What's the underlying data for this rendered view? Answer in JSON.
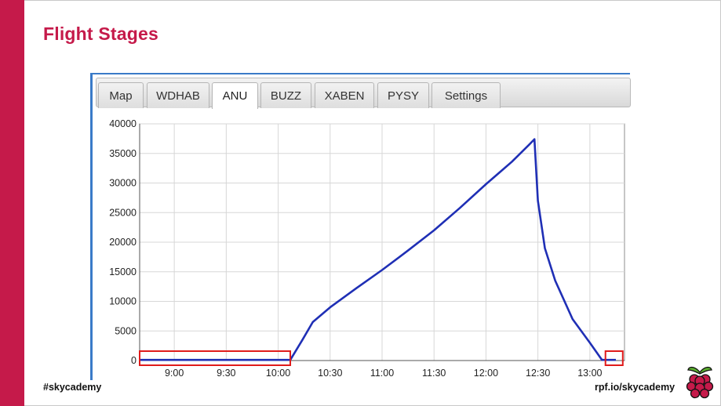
{
  "slide": {
    "title": "Flight Stages",
    "footer_left": "#skycademy",
    "footer_right": "rpf.io/skycademy",
    "accent_color": "#c51a4a",
    "logo_icon": "raspberry-logo-icon"
  },
  "tabs": [
    {
      "label": "Map",
      "active": false
    },
    {
      "label": "WDHAB",
      "active": false
    },
    {
      "label": "ANU",
      "active": true
    },
    {
      "label": "BUZZ",
      "active": false
    },
    {
      "label": "XABEN",
      "active": false
    },
    {
      "label": "PYSY",
      "active": false
    },
    {
      "label": "Settings",
      "active": false
    }
  ],
  "chart_data": {
    "type": "line",
    "title": "",
    "xlabel": "",
    "ylabel": "",
    "x_ticks": [
      "9:00",
      "9:30",
      "10:00",
      "10:30",
      "11:00",
      "11:30",
      "12:00",
      "12:30",
      "13:00"
    ],
    "y_ticks": [
      0,
      5000,
      10000,
      15000,
      20000,
      25000,
      30000,
      35000,
      40000
    ],
    "ylim": [
      0,
      40000
    ],
    "xlim": [
      "08:40",
      "13:20"
    ],
    "grid": true,
    "line_color": "#1f2fb5",
    "series": [
      {
        "points": [
          [
            "08:40",
            100
          ],
          [
            "09:00",
            100
          ],
          [
            "09:30",
            100
          ],
          [
            "10:00",
            100
          ],
          [
            "10:07",
            100
          ],
          [
            "10:14",
            3500
          ],
          [
            "10:20",
            6500
          ],
          [
            "10:30",
            9000
          ],
          [
            "10:45",
            12200
          ],
          [
            "11:00",
            15300
          ],
          [
            "11:15",
            18600
          ],
          [
            "11:30",
            22000
          ],
          [
            "11:45",
            25800
          ],
          [
            "12:00",
            29800
          ],
          [
            "12:15",
            33600
          ],
          [
            "12:25",
            36500
          ],
          [
            "12:28",
            37400
          ],
          [
            "12:30",
            27000
          ],
          [
            "12:34",
            19000
          ],
          [
            "12:40",
            13500
          ],
          [
            "12:50",
            7000
          ],
          [
            "13:00",
            3000
          ],
          [
            "13:07",
            100
          ],
          [
            "13:15",
            100
          ]
        ]
      }
    ],
    "highlights": [
      {
        "from": "08:40",
        "to": "10:07",
        "label": ""
      },
      {
        "from": "13:09",
        "to": "13:19",
        "label": ""
      }
    ],
    "highlight_color": "#e01b1b"
  }
}
